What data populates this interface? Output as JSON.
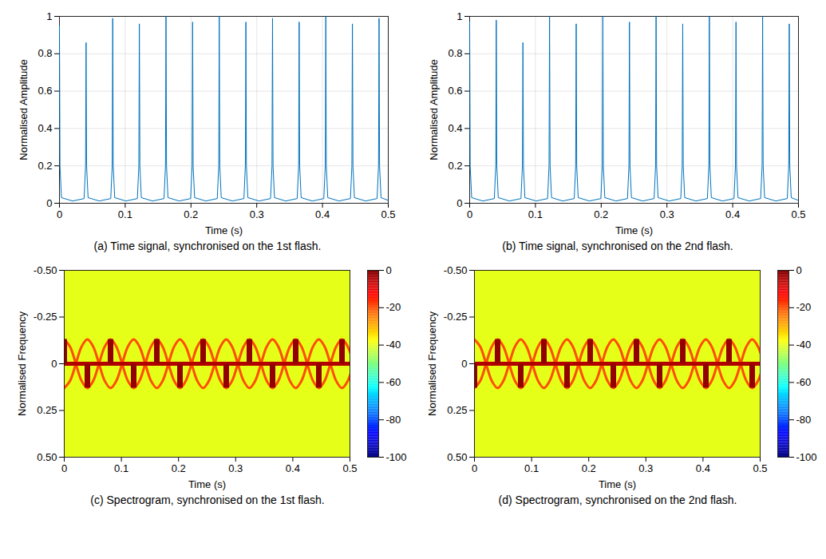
{
  "chart_data": [
    {
      "type": "line",
      "caption": "(a) Time signal, synchronised on the 1st flash.",
      "x_label": "Time (s)",
      "y_label": "Normalised Amplitude",
      "xlim": [
        0,
        0.5
      ],
      "xticks": [
        0,
        0.1,
        0.2,
        0.3,
        0.4,
        0.5
      ],
      "ylim": [
        0,
        1
      ],
      "yticks": [
        0,
        0.2,
        0.4,
        0.6,
        0.8,
        1
      ],
      "grid": true,
      "color": "#0072bd",
      "x": [
        0,
        0.0008,
        0.003,
        0.02,
        0.0375,
        0.0397,
        0.0405,
        0.0413,
        0.0435,
        0.0605,
        0.078,
        0.0802,
        0.081,
        0.0818,
        0.084,
        0.101,
        0.1185,
        0.1207,
        0.1215,
        0.1223,
        0.1245,
        0.1415,
        0.159,
        0.1612,
        0.162,
        0.1628,
        0.165,
        0.182,
        0.1995,
        0.2017,
        0.2025,
        0.2033,
        0.2055,
        0.2225,
        0.24,
        0.2422,
        0.243,
        0.2438,
        0.246,
        0.263,
        0.2805,
        0.2827,
        0.2835,
        0.2843,
        0.2865,
        0.3035,
        0.321,
        0.3232,
        0.324,
        0.3248,
        0.327,
        0.344,
        0.3615,
        0.3637,
        0.3645,
        0.3653,
        0.3675,
        0.3845,
        0.402,
        0.4042,
        0.405,
        0.4058,
        0.408,
        0.425,
        0.4425,
        0.4447,
        0.4455,
        0.4463,
        0.4485,
        0.4655,
        0.483,
        0.4852,
        0.486,
        0.4868,
        0.489,
        0.5
      ],
      "values": [
        0.95,
        0.2,
        0.03,
        0.012,
        0.025,
        0.2,
        0.86,
        0.2,
        0.03,
        0.012,
        0.025,
        0.2,
        0.99,
        0.2,
        0.03,
        0.012,
        0.025,
        0.2,
        0.96,
        0.2,
        0.03,
        0.012,
        0.025,
        0.2,
        1.0,
        0.2,
        0.03,
        0.012,
        0.025,
        0.2,
        0.97,
        0.2,
        0.03,
        0.012,
        0.025,
        0.2,
        1.0,
        0.2,
        0.03,
        0.012,
        0.025,
        0.2,
        0.97,
        0.2,
        0.03,
        0.012,
        0.025,
        0.2,
        0.99,
        0.2,
        0.03,
        0.012,
        0.025,
        0.2,
        0.97,
        0.2,
        0.03,
        0.012,
        0.025,
        0.2,
        1.0,
        0.2,
        0.03,
        0.012,
        0.025,
        0.2,
        0.96,
        0.2,
        0.03,
        0.012,
        0.025,
        0.2,
        0.99,
        0.2,
        0.03,
        0.015
      ]
    },
    {
      "type": "line",
      "caption": "(b) Time signal, synchronised on the 2nd flash.",
      "x_label": "Time (s)",
      "y_label": "Normalised Amplitude",
      "xlim": [
        0,
        0.5
      ],
      "xticks": [
        0,
        0.1,
        0.2,
        0.3,
        0.4,
        0.5
      ],
      "ylim": [
        0,
        1
      ],
      "yticks": [
        0,
        0.2,
        0.4,
        0.6,
        0.8,
        1
      ],
      "grid": true,
      "color": "#0072bd",
      "x": [
        0,
        0.0008,
        0.003,
        0.02,
        0.0375,
        0.0397,
        0.0405,
        0.0413,
        0.0435,
        0.0605,
        0.078,
        0.0802,
        0.081,
        0.0818,
        0.084,
        0.101,
        0.1185,
        0.1207,
        0.1215,
        0.1223,
        0.1245,
        0.1415,
        0.159,
        0.1612,
        0.162,
        0.1628,
        0.165,
        0.182,
        0.1995,
        0.2017,
        0.2025,
        0.2033,
        0.2055,
        0.2225,
        0.24,
        0.2422,
        0.243,
        0.2438,
        0.246,
        0.263,
        0.2805,
        0.2827,
        0.2835,
        0.2843,
        0.2865,
        0.3035,
        0.321,
        0.3232,
        0.324,
        0.3248,
        0.327,
        0.344,
        0.3615,
        0.3637,
        0.3645,
        0.3653,
        0.3675,
        0.3845,
        0.402,
        0.4042,
        0.405,
        0.4058,
        0.408,
        0.425,
        0.4425,
        0.4447,
        0.4455,
        0.4463,
        0.4485,
        0.4655,
        0.483,
        0.4852,
        0.486,
        0.4868,
        0.489,
        0.5
      ],
      "values": [
        0.97,
        0.2,
        0.03,
        0.012,
        0.025,
        0.2,
        0.98,
        0.2,
        0.03,
        0.012,
        0.025,
        0.2,
        0.86,
        0.2,
        0.03,
        0.012,
        0.025,
        0.2,
        1.0,
        0.2,
        0.03,
        0.012,
        0.025,
        0.2,
        0.96,
        0.2,
        0.03,
        0.012,
        0.025,
        0.2,
        1.0,
        0.2,
        0.03,
        0.012,
        0.025,
        0.2,
        0.97,
        0.2,
        0.03,
        0.012,
        0.025,
        0.2,
        1.0,
        0.2,
        0.03,
        0.012,
        0.025,
        0.2,
        0.96,
        0.2,
        0.03,
        0.012,
        0.025,
        0.2,
        1.0,
        0.2,
        0.03,
        0.012,
        0.025,
        0.2,
        0.97,
        0.2,
        0.03,
        0.012,
        0.025,
        0.2,
        1.0,
        0.2,
        0.03,
        0.012,
        0.025,
        0.2,
        0.96,
        0.2,
        0.03,
        0.015
      ]
    },
    {
      "type": "heatmap",
      "caption": "(c) Spectrogram, synchronised on the 1st flash.",
      "x_label": "Time (s)",
      "y_label": "Normalised Frequency",
      "xlim": [
        0,
        0.5
      ],
      "xticks": [
        0,
        0.1,
        0.2,
        0.3,
        0.4,
        0.5
      ],
      "ylim": [
        0.5,
        -0.5
      ],
      "yticks": [
        {
          "value": -0.5,
          "label": "-0.50"
        },
        -0.25,
        0,
        0.25,
        {
          "value": 0.5,
          "label": "0.50"
        }
      ],
      "color_range": [
        -100,
        0
      ],
      "color_ticks": [
        0,
        -20,
        -40,
        -60,
        -80,
        -100
      ],
      "background": -40,
      "baseline": {
        "freq": 0,
        "value": -5
      },
      "flashes": [
        {
          "time": 0,
          "freq_start": 0,
          "freq_end": -0.13,
          "value": -2
        },
        {
          "time": 0.0405,
          "freq_start": 0,
          "freq_end": 0.13,
          "value": -2
        },
        {
          "time": 0.081,
          "freq_start": 0,
          "freq_end": -0.13,
          "value": -2
        },
        {
          "time": 0.1215,
          "freq_start": 0,
          "freq_end": 0.13,
          "value": -2
        },
        {
          "time": 0.162,
          "freq_start": 0,
          "freq_end": -0.13,
          "value": -2
        },
        {
          "time": 0.2025,
          "freq_start": 0,
          "freq_end": 0.13,
          "value": -2
        },
        {
          "time": 0.243,
          "freq_start": 0,
          "freq_end": -0.13,
          "value": -2
        },
        {
          "time": 0.2835,
          "freq_start": 0,
          "freq_end": 0.13,
          "value": -2
        },
        {
          "time": 0.324,
          "freq_start": 0,
          "freq_end": -0.13,
          "value": -2
        },
        {
          "time": 0.3645,
          "freq_start": 0,
          "freq_end": 0.13,
          "value": -2
        },
        {
          "time": 0.405,
          "freq_start": 0,
          "freq_end": -0.13,
          "value": -2
        },
        {
          "time": 0.4455,
          "freq_start": 0,
          "freq_end": 0.13,
          "value": -2
        },
        {
          "time": 0.486,
          "freq_start": 0,
          "freq_end": -0.13,
          "value": -2
        }
      ],
      "arcs": {
        "value": -20,
        "x": [
          0,
          0.0101,
          0.0203,
          0.0304,
          0.0405,
          0.0506,
          0.0608,
          0.0709,
          0.081,
          0.0911,
          0.1013,
          0.1114,
          0.1215,
          0.1316,
          0.1418,
          0.1519,
          0.162,
          0.1721,
          0.1823,
          0.1924,
          0.2025,
          0.2126,
          0.2228,
          0.2329,
          0.243,
          0.2531,
          0.2633,
          0.2734,
          0.2835,
          0.2936,
          0.3038,
          0.3139,
          0.324,
          0.3341,
          0.3443,
          0.3544,
          0.3645,
          0.3746,
          0.3848,
          0.3949,
          0.405,
          0.4151,
          0.4253,
          0.4354,
          0.4455,
          0.4556,
          0.4658,
          0.4759,
          0.486,
          0.4961,
          0.5063
        ],
        "freqs": [
          [
            -0.13,
            -0.092,
            0,
            0.092,
            0.13,
            0.092,
            0,
            -0.092,
            -0.13,
            -0.092,
            0,
            0.092,
            0.13,
            0.092,
            0,
            -0.092,
            -0.13,
            -0.092,
            0,
            0.092,
            0.13,
            0.092,
            0,
            -0.092,
            -0.13,
            -0.092,
            0,
            0.092,
            0.13,
            0.092,
            0,
            -0.092,
            -0.13,
            -0.092,
            0,
            0.092,
            0.13,
            0.092,
            0,
            -0.092,
            -0.13,
            -0.092,
            0,
            0.092,
            0.13,
            0.092,
            0,
            -0.092,
            -0.13,
            -0.092,
            0
          ],
          [
            0.13,
            0.092,
            0,
            -0.092,
            -0.13,
            -0.092,
            0,
            0.092,
            0.13,
            0.092,
            0,
            -0.092,
            -0.13,
            -0.092,
            0,
            0.092,
            0.13,
            0.092,
            0,
            -0.092,
            -0.13,
            -0.092,
            0,
            0.092,
            0.13,
            0.092,
            0,
            -0.092,
            -0.13,
            -0.092,
            0,
            0.092,
            0.13,
            0.092,
            0,
            -0.092,
            -0.13,
            -0.092,
            0,
            0.092,
            0.13,
            0.092,
            0,
            -0.092,
            -0.13,
            -0.092,
            0,
            0.092,
            0.13,
            0.092,
            0
          ]
        ]
      }
    },
    {
      "type": "heatmap",
      "caption": "(d) Spectrogram, synchronised on the 2nd flash.",
      "x_label": "Time (s)",
      "y_label": "Normalised Frequency",
      "xlim": [
        0,
        0.5
      ],
      "xticks": [
        0,
        0.1,
        0.2,
        0.3,
        0.4,
        0.5
      ],
      "ylim": [
        0.5,
        -0.5
      ],
      "yticks": [
        {
          "value": -0.5,
          "label": "-0.50"
        },
        -0.25,
        0,
        0.25,
        {
          "value": 0.5,
          "label": "0.50"
        }
      ],
      "color_range": [
        -100,
        0
      ],
      "color_ticks": [
        0,
        -20,
        -40,
        -60,
        -80,
        -100
      ],
      "background": -40,
      "baseline": {
        "freq": 0,
        "value": -5
      },
      "flashes": [
        {
          "time": 0,
          "freq_start": 0,
          "freq_end": 0.13,
          "value": -2
        },
        {
          "time": 0.0405,
          "freq_start": 0,
          "freq_end": -0.13,
          "value": -2
        },
        {
          "time": 0.081,
          "freq_start": 0,
          "freq_end": 0.13,
          "value": -2
        },
        {
          "time": 0.1215,
          "freq_start": 0,
          "freq_end": -0.13,
          "value": -2
        },
        {
          "time": 0.162,
          "freq_start": 0,
          "freq_end": 0.13,
          "value": -2
        },
        {
          "time": 0.2025,
          "freq_start": 0,
          "freq_end": -0.13,
          "value": -2
        },
        {
          "time": 0.243,
          "freq_start": 0,
          "freq_end": 0.13,
          "value": -2
        },
        {
          "time": 0.2835,
          "freq_start": 0,
          "freq_end": -0.13,
          "value": -2
        },
        {
          "time": 0.324,
          "freq_start": 0,
          "freq_end": 0.13,
          "value": -2
        },
        {
          "time": 0.3645,
          "freq_start": 0,
          "freq_end": -0.13,
          "value": -2
        },
        {
          "time": 0.405,
          "freq_start": 0,
          "freq_end": 0.13,
          "value": -2
        },
        {
          "time": 0.4455,
          "freq_start": 0,
          "freq_end": -0.13,
          "value": -2
        },
        {
          "time": 0.486,
          "freq_start": 0,
          "freq_end": 0.13,
          "value": -2
        }
      ],
      "arcs": {
        "value": -20,
        "x": [
          0,
          0.0101,
          0.0203,
          0.0304,
          0.0405,
          0.0506,
          0.0608,
          0.0709,
          0.081,
          0.0911,
          0.1013,
          0.1114,
          0.1215,
          0.1316,
          0.1418,
          0.1519,
          0.162,
          0.1721,
          0.1823,
          0.1924,
          0.2025,
          0.2126,
          0.2228,
          0.2329,
          0.243,
          0.2531,
          0.2633,
          0.2734,
          0.2835,
          0.2936,
          0.3038,
          0.3139,
          0.324,
          0.3341,
          0.3443,
          0.3544,
          0.3645,
          0.3746,
          0.3848,
          0.3949,
          0.405,
          0.4151,
          0.4253,
          0.4354,
          0.4455,
          0.4556,
          0.4658,
          0.4759,
          0.486,
          0.4961,
          0.5063
        ],
        "freqs": [
          [
            -0.13,
            -0.092,
            0,
            0.092,
            0.13,
            0.092,
            0,
            -0.092,
            -0.13,
            -0.092,
            0,
            0.092,
            0.13,
            0.092,
            0,
            -0.092,
            -0.13,
            -0.092,
            0,
            0.092,
            0.13,
            0.092,
            0,
            -0.092,
            -0.13,
            -0.092,
            0,
            0.092,
            0.13,
            0.092,
            0,
            -0.092,
            -0.13,
            -0.092,
            0,
            0.092,
            0.13,
            0.092,
            0,
            -0.092,
            -0.13,
            -0.092,
            0,
            0.092,
            0.13,
            0.092,
            0,
            -0.092,
            -0.13,
            -0.092,
            0
          ],
          [
            0.13,
            0.092,
            0,
            -0.092,
            -0.13,
            -0.092,
            0,
            0.092,
            0.13,
            0.092,
            0,
            -0.092,
            -0.13,
            -0.092,
            0,
            0.092,
            0.13,
            0.092,
            0,
            -0.092,
            -0.13,
            -0.092,
            0,
            0.092,
            0.13,
            0.092,
            0,
            -0.092,
            -0.13,
            -0.092,
            0,
            0.092,
            0.13,
            0.092,
            0,
            -0.092,
            -0.13,
            -0.092,
            0,
            0.092,
            0.13,
            0.092,
            0,
            -0.092,
            -0.13,
            -0.092,
            0,
            0.092,
            0.13,
            0.092,
            0
          ]
        ]
      }
    }
  ]
}
